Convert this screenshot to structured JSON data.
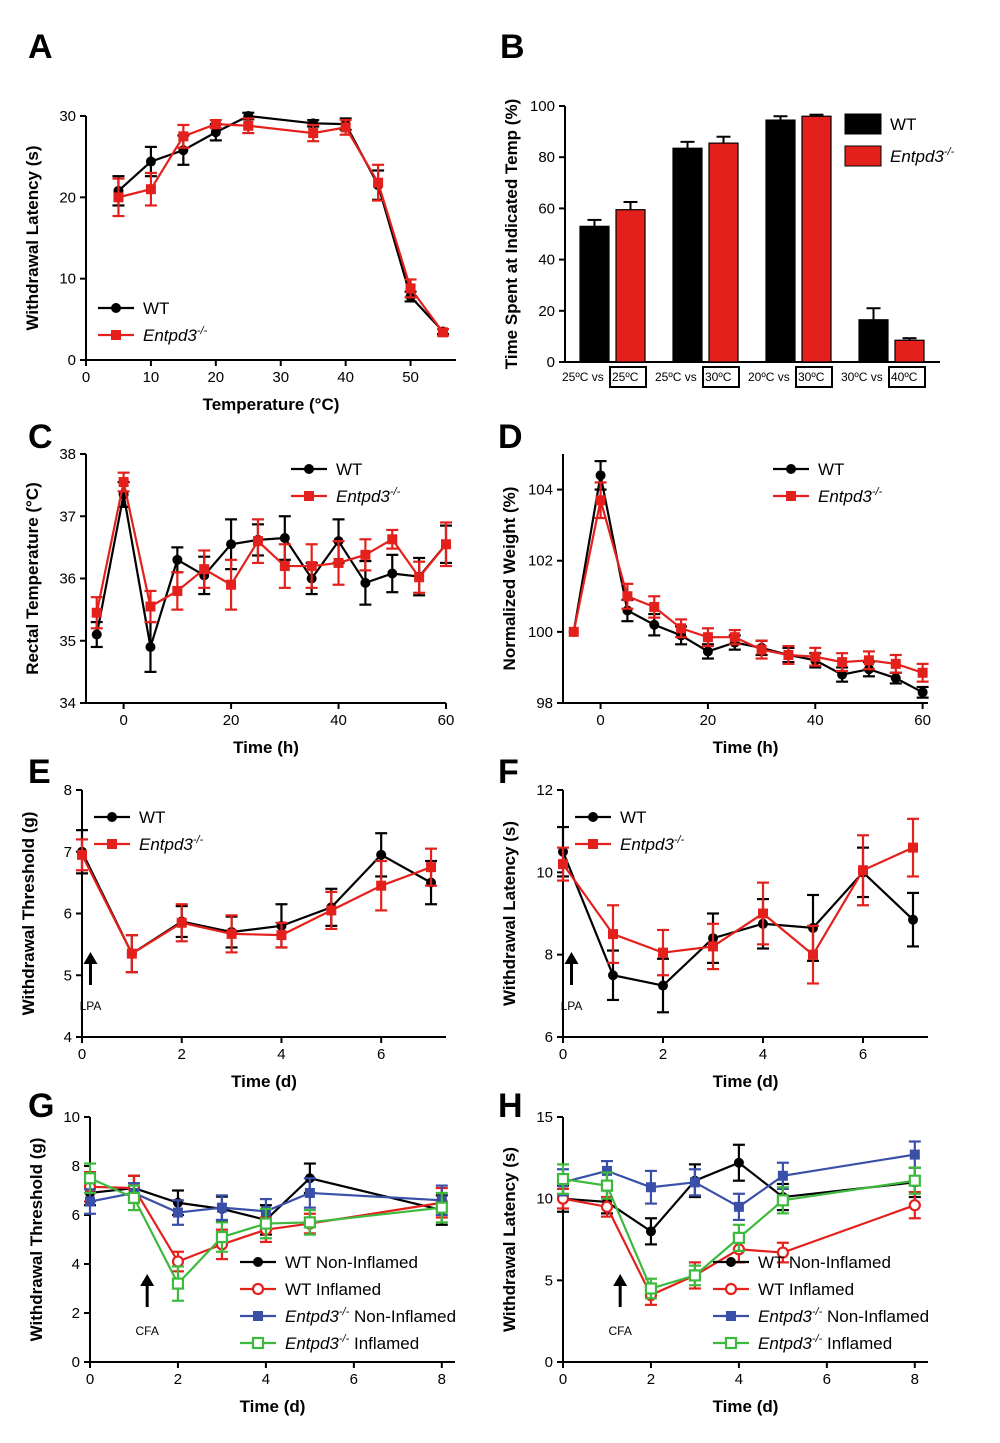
{
  "panel_letters": [
    "A",
    "B",
    "C",
    "D",
    "E",
    "F",
    "G",
    "H"
  ],
  "colors": {
    "wt": "#000000",
    "ko": "#e3201b",
    "ko_non": "#3a4fa8",
    "ko_inf": "#3dba3d"
  },
  "chart_data": [
    {
      "id": "A",
      "type": "line",
      "xlabel": "Temperature (°C)",
      "ylabel": "Withdrawal Latency (s)",
      "xlim": [
        0,
        57
      ],
      "ylim": [
        0,
        30
      ],
      "xticks": [
        0,
        10,
        20,
        30,
        40,
        50
      ],
      "yticks": [
        0,
        10,
        20,
        30
      ],
      "legend_position": "bottom-left",
      "series": [
        {
          "name": "WT",
          "color": "#000000",
          "marker": "circle",
          "x": [
            5,
            10,
            15,
            20,
            25,
            35,
            40,
            45,
            50,
            55
          ],
          "y": [
            20.8,
            24.4,
            25.8,
            28.0,
            30.0,
            29.1,
            29.0,
            21.5,
            7.8,
            3.5
          ],
          "err": [
            1.8,
            1.8,
            1.8,
            1.0,
            0.4,
            0.4,
            0.7,
            1.8,
            0.6,
            0.3
          ]
        },
        {
          "name_prefix": "Entpd3",
          "name_sup": "-/-",
          "color": "#e3201b",
          "marker": "square",
          "x": [
            5,
            10,
            15,
            20,
            25,
            35,
            40,
            45,
            50,
            55
          ],
          "y": [
            20.0,
            21.0,
            27.5,
            29.0,
            28.8,
            27.9,
            28.6,
            21.8,
            8.8,
            3.4
          ],
          "err": [
            2.3,
            2.0,
            1.4,
            0.5,
            0.9,
            1.0,
            0.9,
            2.2,
            1.1,
            0.4
          ]
        }
      ]
    },
    {
      "id": "B",
      "type": "bar",
      "ylabel": "Time Spent at Indicated Temp (%)",
      "ylim": [
        0,
        100
      ],
      "yticks": [
        0,
        20,
        40,
        60,
        80,
        100
      ],
      "legend_position": "top-right",
      "categories": [
        {
          "left": "25ºC vs ",
          "boxed": "25ºC"
        },
        {
          "left": "25ºC vs ",
          "boxed": "30ºC"
        },
        {
          "left": "20ºC vs ",
          "boxed": "30ºC"
        },
        {
          "left": "30ºC vs ",
          "boxed": "40ºC"
        }
      ],
      "series": [
        {
          "name": "WT",
          "color": "#000000",
          "values": [
            53,
            83.5,
            94.5,
            16.5
          ],
          "err": [
            2.5,
            2.5,
            1.5,
            4.5
          ]
        },
        {
          "name_prefix": "Entpd3",
          "name_sup": "-/-",
          "color": "#e3201b",
          "values": [
            59.5,
            85.5,
            96,
            8.5
          ],
          "err": [
            3,
            2.5,
            0.6,
            0.8
          ]
        }
      ]
    },
    {
      "id": "C",
      "type": "line",
      "xlabel": "Time (h)",
      "ylabel": "Rectal Temperature (°C)",
      "xlim": [
        -7,
        60
      ],
      "ylim": [
        34,
        38
      ],
      "xticks": [
        0,
        20,
        40,
        60
      ],
      "yticks": [
        34,
        35,
        36,
        37,
        38
      ],
      "legend_position": "top-right",
      "series": [
        {
          "name": "WT",
          "color": "#000000",
          "marker": "circle",
          "x": [
            -5,
            0,
            5,
            10,
            15,
            20,
            25,
            30,
            35,
            40,
            45,
            50,
            55,
            60
          ],
          "y": [
            35.1,
            37.35,
            34.9,
            36.3,
            36.05,
            36.55,
            36.62,
            36.65,
            36.0,
            36.6,
            35.93,
            36.08,
            36.03,
            36.55
          ],
          "err": [
            0.2,
            0.2,
            0.4,
            0.2,
            0.3,
            0.4,
            0.25,
            0.35,
            0.25,
            0.35,
            0.35,
            0.3,
            0.3,
            0.3
          ]
        },
        {
          "name_prefix": "Entpd3",
          "name_sup": "-/-",
          "color": "#e3201b",
          "marker": "square",
          "x": [
            -5,
            0,
            5,
            10,
            15,
            20,
            25,
            30,
            35,
            40,
            45,
            50,
            55,
            60
          ],
          "y": [
            35.45,
            37.55,
            35.55,
            35.8,
            36.15,
            35.9,
            36.6,
            36.2,
            36.2,
            36.25,
            36.38,
            36.63,
            36.02,
            36.55
          ],
          "err": [
            0.25,
            0.15,
            0.25,
            0.3,
            0.3,
            0.4,
            0.35,
            0.35,
            0.35,
            0.35,
            0.25,
            0.15,
            0.25,
            0.35
          ]
        }
      ]
    },
    {
      "id": "D",
      "type": "line",
      "xlabel": "Time (h)",
      "ylabel": "Normalized Weight (%)",
      "xlim": [
        -7,
        61
      ],
      "ylim": [
        98,
        105
      ],
      "xticks": [
        0,
        20,
        40,
        60
      ],
      "yticks": [
        98,
        100,
        102,
        104
      ],
      "legend_position": "top-right",
      "series": [
        {
          "name": "WT",
          "color": "#000000",
          "marker": "circle",
          "x": [
            -5,
            0,
            5,
            10,
            15,
            20,
            25,
            30,
            35,
            40,
            45,
            50,
            55,
            60
          ],
          "y": [
            100.0,
            104.4,
            100.6,
            100.2,
            99.9,
            99.45,
            99.7,
            99.55,
            99.35,
            99.2,
            98.8,
            98.95,
            98.7,
            98.3
          ],
          "err": [
            0.0,
            0.4,
            0.3,
            0.3,
            0.25,
            0.2,
            0.2,
            0.2,
            0.2,
            0.2,
            0.2,
            0.2,
            0.15,
            0.15
          ]
        },
        {
          "name_prefix": "Entpd3",
          "name_sup": "-/-",
          "color": "#e3201b",
          "marker": "square",
          "x": [
            -5,
            0,
            5,
            10,
            15,
            20,
            25,
            30,
            35,
            40,
            45,
            50,
            55,
            60
          ],
          "y": [
            100.0,
            103.7,
            101.0,
            100.7,
            100.1,
            99.85,
            99.85,
            99.5,
            99.35,
            99.3,
            99.15,
            99.2,
            99.1,
            98.85
          ],
          "err": [
            0.0,
            0.5,
            0.35,
            0.3,
            0.25,
            0.25,
            0.2,
            0.25,
            0.25,
            0.25,
            0.25,
            0.25,
            0.25,
            0.25
          ]
        }
      ]
    },
    {
      "id": "E",
      "type": "line",
      "xlabel": "Time (d)",
      "ylabel": "Withdrawal Threshold (g)",
      "xlim": [
        0,
        7.3
      ],
      "ylim": [
        4,
        8
      ],
      "xticks": [
        0,
        2,
        4,
        6
      ],
      "yticks": [
        4,
        5,
        6,
        7,
        8
      ],
      "legend_position": "top-left",
      "annotation": "LPA",
      "series": [
        {
          "name": "WT",
          "color": "#000000",
          "marker": "circle",
          "x": [
            0,
            1,
            2,
            3,
            4,
            5,
            6,
            7
          ],
          "y": [
            7.0,
            5.35,
            5.87,
            5.7,
            5.8,
            6.1,
            6.95,
            6.5
          ],
          "err": [
            0.35,
            0.3,
            0.25,
            0.25,
            0.35,
            0.3,
            0.35,
            0.35
          ]
        },
        {
          "name_prefix": "Entpd3",
          "name_sup": "-/-",
          "color": "#e3201b",
          "marker": "square",
          "x": [
            0,
            1,
            2,
            3,
            4,
            5,
            6,
            7
          ],
          "y": [
            6.95,
            5.35,
            5.85,
            5.67,
            5.65,
            6.05,
            6.45,
            6.75
          ],
          "err": [
            0.25,
            0.3,
            0.3,
            0.3,
            0.2,
            0.3,
            0.4,
            0.3
          ]
        }
      ]
    },
    {
      "id": "F",
      "type": "line",
      "xlabel": "Time (d)",
      "ylabel": "Withdrawal Latency (s)",
      "xlim": [
        0,
        7.3
      ],
      "ylim": [
        6,
        12
      ],
      "xticks": [
        0,
        2,
        4,
        6
      ],
      "yticks": [
        6,
        8,
        10,
        12
      ],
      "legend_position": "top-left",
      "annotation": "LPA",
      "series": [
        {
          "name": "WT",
          "color": "#000000",
          "marker": "circle",
          "x": [
            0,
            1,
            2,
            3,
            4,
            5,
            6,
            7
          ],
          "y": [
            10.5,
            7.5,
            7.25,
            8.4,
            8.75,
            8.65,
            10.0,
            8.85
          ],
          "err": [
            0.6,
            0.6,
            0.65,
            0.6,
            0.6,
            0.8,
            0.6,
            0.65
          ]
        },
        {
          "name_prefix": "Entpd3",
          "name_sup": "-/-",
          "color": "#e3201b",
          "marker": "square",
          "x": [
            0,
            1,
            2,
            3,
            4,
            5,
            6,
            7
          ],
          "y": [
            10.2,
            8.5,
            8.05,
            8.2,
            9.0,
            8.0,
            10.05,
            10.6
          ],
          "err": [
            0.4,
            0.7,
            0.55,
            0.55,
            0.75,
            0.7,
            0.85,
            0.7
          ]
        }
      ]
    },
    {
      "id": "G",
      "type": "line",
      "xlabel": "Time (d)",
      "ylabel": "Withdrawal Threshold (g)",
      "xlim": [
        0,
        8.3
      ],
      "ylim": [
        0,
        10
      ],
      "xticks": [
        0,
        2,
        4,
        6,
        8
      ],
      "yticks": [
        0,
        2,
        4,
        6,
        8,
        10
      ],
      "legend_position": "bottom-right",
      "annotation": "CFA",
      "series": [
        {
          "name": "WT Non-Inflamed",
          "color": "#000000",
          "marker": "circle",
          "x": [
            0,
            1,
            2,
            3,
            4,
            5,
            8
          ],
          "y": [
            6.9,
            7.1,
            6.5,
            6.25,
            5.8,
            7.5,
            6.2
          ],
          "err": [
            0.5,
            0.5,
            0.5,
            0.5,
            0.6,
            0.6,
            0.6
          ]
        },
        {
          "name": "WT Inflamed",
          "color": "#e3201b",
          "marker": "open-circle",
          "x": [
            0,
            1,
            2,
            3,
            4,
            5,
            8
          ],
          "y": [
            7.15,
            7.1,
            4.1,
            4.8,
            5.4,
            5.65,
            6.5
          ],
          "err": [
            0.6,
            0.5,
            0.4,
            0.6,
            0.5,
            0.4,
            0.6
          ]
        },
        {
          "name_prefix": "Entpd3",
          "name_sup": "-/-",
          "name_suffix": " Non-Inflamed",
          "color": "#3a4fa8",
          "marker": "square",
          "x": [
            0,
            1,
            2,
            3,
            4,
            5,
            8
          ],
          "y": [
            6.55,
            6.9,
            6.1,
            6.3,
            6.15,
            6.9,
            6.6
          ],
          "err": [
            0.5,
            0.4,
            0.5,
            0.5,
            0.5,
            0.6,
            0.6
          ]
        },
        {
          "name_prefix": "Entpd3",
          "name_sup": "-/-",
          "name_suffix": " Inflamed",
          "color": "#3dba3d",
          "marker": "open-square",
          "x": [
            0,
            1,
            2,
            3,
            4,
            5,
            8
          ],
          "y": [
            7.5,
            6.7,
            3.2,
            5.1,
            5.65,
            5.7,
            6.3
          ],
          "err": [
            0.6,
            0.5,
            0.7,
            0.6,
            0.6,
            0.5,
            0.6
          ]
        }
      ]
    },
    {
      "id": "H",
      "type": "line",
      "xlabel": "Time (d)",
      "ylabel": "Withdrawal Latency (s)",
      "xlim": [
        0,
        8.3
      ],
      "ylim": [
        0,
        15
      ],
      "xticks": [
        0,
        2,
        4,
        6,
        8
      ],
      "yticks": [
        0,
        5,
        10,
        15
      ],
      "legend_position": "bottom-right",
      "annotation": "CFA",
      "series": [
        {
          "name": "WT Non-Inflamed",
          "color": "#000000",
          "marker": "circle",
          "x": [
            0,
            1,
            2,
            3,
            4,
            5,
            8
          ],
          "y": [
            10.0,
            9.8,
            8.0,
            11.1,
            12.2,
            10.1,
            11.0
          ],
          "err": [
            0.8,
            0.7,
            0.8,
            1.0,
            1.1,
            0.8,
            0.9
          ]
        },
        {
          "name": "WT Inflamed",
          "color": "#e3201b",
          "marker": "open-circle",
          "x": [
            0,
            1,
            2,
            3,
            4,
            5,
            8
          ],
          "y": [
            10.0,
            9.5,
            4.1,
            5.3,
            6.9,
            6.7,
            9.6
          ],
          "err": [
            0.6,
            0.6,
            0.6,
            0.8,
            0.8,
            0.6,
            0.8
          ]
        },
        {
          "name_prefix": "Entpd3",
          "name_sup": "-/-",
          "name_suffix": " Non-Inflamed",
          "color": "#3a4fa8",
          "marker": "square",
          "x": [
            0,
            1,
            2,
            3,
            4,
            5,
            8
          ],
          "y": [
            11.0,
            11.7,
            10.7,
            11.0,
            9.5,
            11.4,
            12.7
          ],
          "err": [
            0.8,
            0.6,
            1.0,
            0.8,
            0.8,
            0.8,
            0.8
          ]
        },
        {
          "name_prefix": "Entpd3",
          "name_sup": "-/-",
          "name_suffix": " Inflamed",
          "color": "#3dba3d",
          "marker": "open-square",
          "x": [
            0,
            1,
            2,
            3,
            4,
            5,
            8
          ],
          "y": [
            11.2,
            10.8,
            4.5,
            5.3,
            7.6,
            9.9,
            11.1
          ],
          "err": [
            0.9,
            0.8,
            0.6,
            0.6,
            0.8,
            0.8,
            0.8
          ]
        }
      ]
    }
  ]
}
